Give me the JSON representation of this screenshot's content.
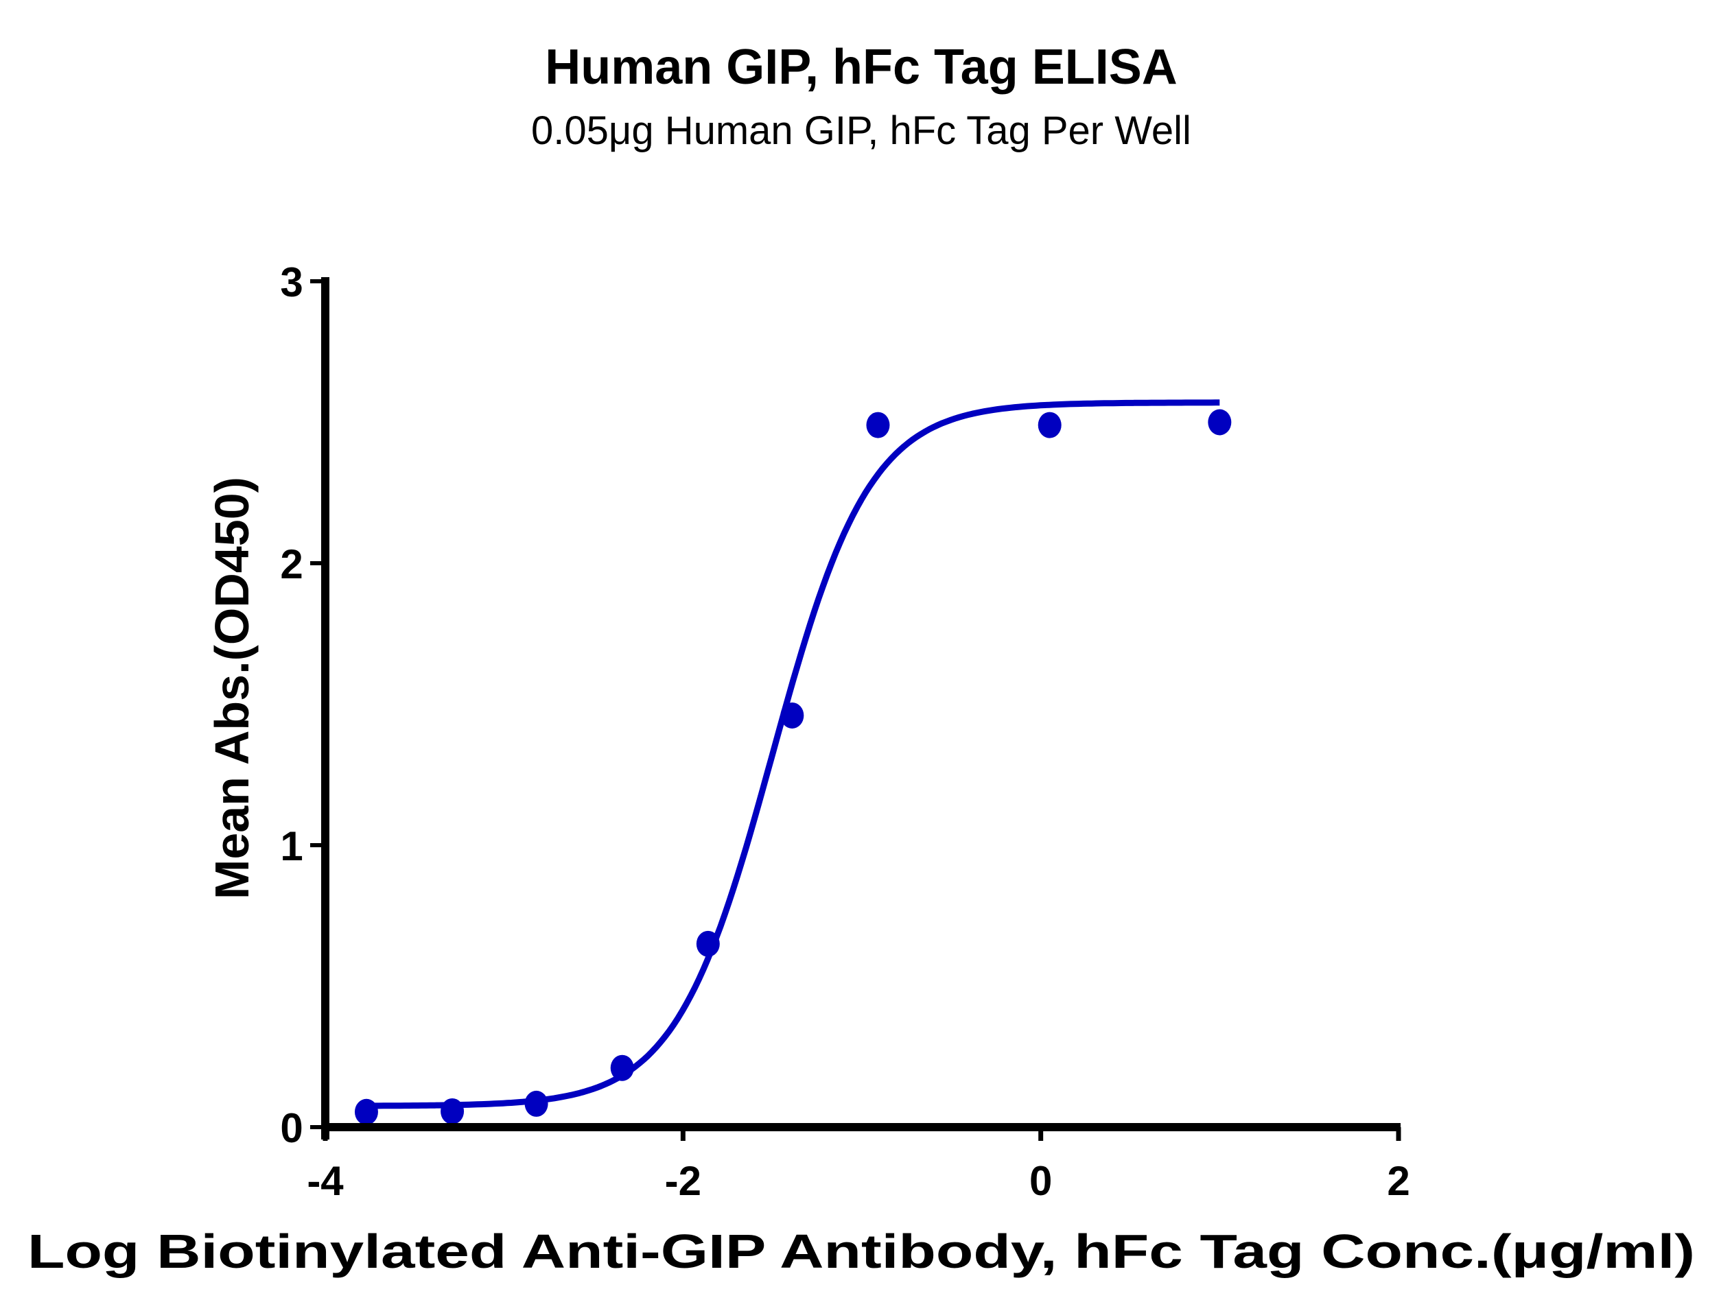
{
  "chart_data": {
    "type": "scatter",
    "title": "Human GIP, hFc Tag ELISA",
    "subtitle": "0.05μg Human GIP, hFc Tag Per Well",
    "xlabel": "Log Biotinylated Anti-GIP Antibody, hFc Tag Conc.(μg/ml)",
    "ylabel": "Mean Abs.(OD450)",
    "xlim": [
      -4,
      2
    ],
    "ylim": [
      0,
      3
    ],
    "xticks": [
      -4,
      -2,
      0,
      2
    ],
    "xtick_labels": [
      "-4",
      "-2",
      "0",
      "2"
    ],
    "yticks": [
      0,
      1,
      2,
      3
    ],
    "ytick_labels": [
      "0",
      "1",
      "2",
      "3"
    ],
    "grid": false,
    "legend": null,
    "series": [
      {
        "name": "Mean Abs.(OD450)",
        "color": "#0000C0",
        "marker": "circle",
        "x": [
          -3.77,
          -3.29,
          -2.82,
          -2.34,
          -1.86,
          -1.39,
          -0.91,
          0.05,
          1.0
        ],
        "y": [
          0.054,
          0.056,
          0.083,
          0.21,
          0.65,
          1.46,
          2.49,
          2.49,
          2.5
        ]
      }
    ],
    "fit": {
      "type": "4PL sigmoidal curve",
      "color": "#0000C0",
      "bottom": 0.075,
      "top": 2.57,
      "log_ec50": -1.5,
      "hill_slope": 1.6,
      "x_range": [
        -3.77,
        1.0
      ]
    }
  },
  "title": "Human GIP, hFc Tag ELISA",
  "subtitle": "0.05μg Human GIP, hFc Tag Per Well",
  "x_axis": {
    "label": "Log Biotinylated Anti-GIP Antibody, hFc Tag Conc.(μg/ml)",
    "ticks": [
      "-4",
      "-2",
      "0",
      "2"
    ]
  },
  "y_axis": {
    "label": "Mean Abs.(OD450)",
    "ticks": [
      "0",
      "1",
      "2",
      "3"
    ]
  }
}
